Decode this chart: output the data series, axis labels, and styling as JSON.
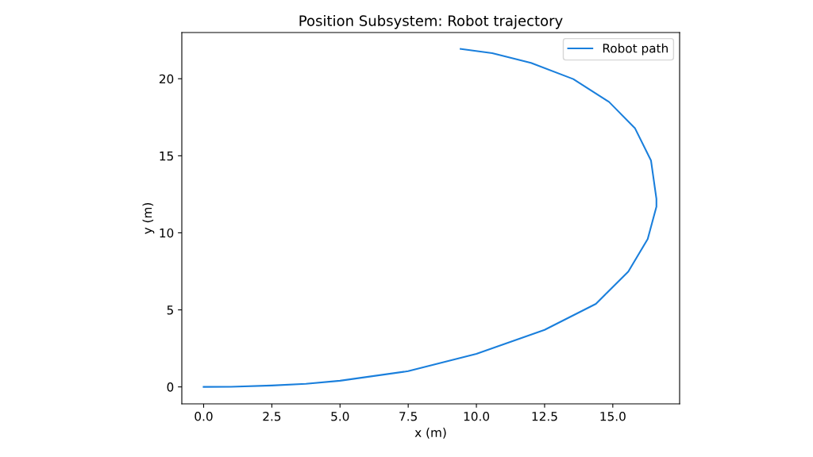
{
  "chart_data": {
    "type": "line",
    "title": "Position Subsystem: Robot trajectory",
    "xlabel": "x (m)",
    "ylabel": "y (m)",
    "xlim": [
      -0.8,
      17.45
    ],
    "ylim": [
      -1.1,
      23.0
    ],
    "xticks": [
      {
        "value": 0,
        "label": "0.0"
      },
      {
        "value": 2.5,
        "label": "2.5"
      },
      {
        "value": 5,
        "label": "5.0"
      },
      {
        "value": 7.5,
        "label": "7.5"
      },
      {
        "value": 10,
        "label": "10.0"
      },
      {
        "value": 12.5,
        "label": "12.5"
      },
      {
        "value": 15,
        "label": "15.0"
      }
    ],
    "yticks": [
      0,
      5,
      10,
      15,
      20
    ],
    "legend": "top right",
    "grid": false,
    "series": [
      {
        "name": "Robot path",
        "color": "#1a7fdc",
        "x": [
          0,
          1.0,
          2.5,
          3.75,
          5.0,
          7.5,
          10.0,
          12.5,
          14.38,
          15.57,
          16.28,
          16.6,
          16.6,
          16.4,
          15.81,
          14.86,
          13.55,
          12.0,
          10.58,
          9.42
        ],
        "values": [
          0,
          0.01,
          0.09,
          0.2,
          0.4,
          1.02,
          2.14,
          3.7,
          5.39,
          7.49,
          9.6,
          11.7,
          12.2,
          14.7,
          16.8,
          18.5,
          19.98,
          21.03,
          21.66,
          21.94
        ]
      }
    ]
  }
}
